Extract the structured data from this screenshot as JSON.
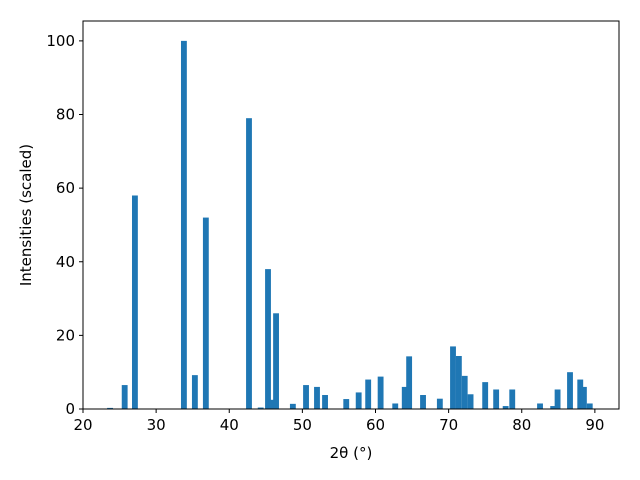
{
  "chart_data": {
    "type": "bar",
    "xlabel": "2θ (°)",
    "ylabel": "Intensities (scaled)",
    "x": [
      23.7,
      25.7,
      27.1,
      33.8,
      35.3,
      36.8,
      42.7,
      44.3,
      45.3,
      45.8,
      46.4,
      48.7,
      50.5,
      52.0,
      53.1,
      56.0,
      57.7,
      59.0,
      60.7,
      62.7,
      64.0,
      64.6,
      66.5,
      68.8,
      70.6,
      71.4,
      72.2,
      73.0,
      75.0,
      76.5,
      77.8,
      78.7,
      82.5,
      84.3,
      84.9,
      86.6,
      88.0,
      88.5,
      89.3
    ],
    "values": [
      0.3,
      6.5,
      58,
      100,
      9.2,
      52,
      79,
      0.4,
      38,
      2.5,
      26,
      1.4,
      6.5,
      6,
      3.8,
      2.7,
      4.5,
      8,
      8.8,
      1.5,
      6,
      14.3,
      3.8,
      2.8,
      17,
      14.4,
      9,
      4,
      7.3,
      5.3,
      0.8,
      5.3,
      1.5,
      0.8,
      5.3,
      10,
      8,
      6,
      1.5
    ],
    "color": "#1f77b4",
    "xlim": [
      20,
      93.3
    ],
    "ylim": [
      0,
      105.4
    ],
    "xticks": [
      20,
      30,
      40,
      50,
      60,
      70,
      80,
      90
    ],
    "yticks": [
      0,
      20,
      40,
      60,
      80,
      100
    ],
    "grid": false
  }
}
